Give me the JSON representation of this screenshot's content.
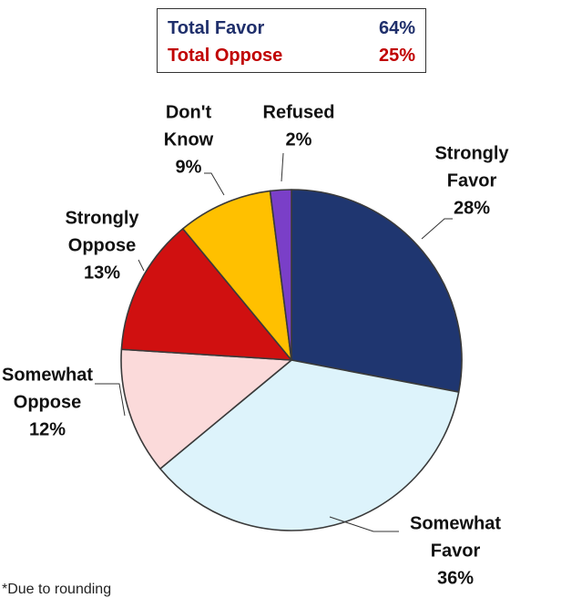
{
  "summary": {
    "favor_label": "Total Favor",
    "favor_value": "64%",
    "oppose_label": "Total Oppose",
    "oppose_value": "25%",
    "favor_color": "#1f2f6b",
    "oppose_color": "#c00000"
  },
  "footnote": "*Due to rounding",
  "chart_data": {
    "type": "pie",
    "slices": [
      {
        "label_lines": [
          "Strongly",
          "Favor"
        ],
        "value_label": "28%",
        "value": 28,
        "color": "#1f3670"
      },
      {
        "label_lines": [
          "Somewhat",
          "Favor"
        ],
        "value_label": "36%",
        "value": 36,
        "color": "#ddf3fb"
      },
      {
        "label_lines": [
          "Somewhat",
          "Oppose"
        ],
        "value_label": "12%",
        "value": 12,
        "color": "#fbdada"
      },
      {
        "label_lines": [
          "Strongly",
          "Oppose"
        ],
        "value_label": "13%",
        "value": 13,
        "color": "#d01010"
      },
      {
        "label_lines": [
          "Don't",
          "Know"
        ],
        "value_label": "9%",
        "value": 9,
        "color": "#ffc000"
      },
      {
        "label_lines": [
          "Refused"
        ],
        "value_label": "2%",
        "value": 2,
        "color": "#7a3fc8"
      }
    ],
    "start": "12 o'clock",
    "direction": "clockwise",
    "legend": "none"
  }
}
